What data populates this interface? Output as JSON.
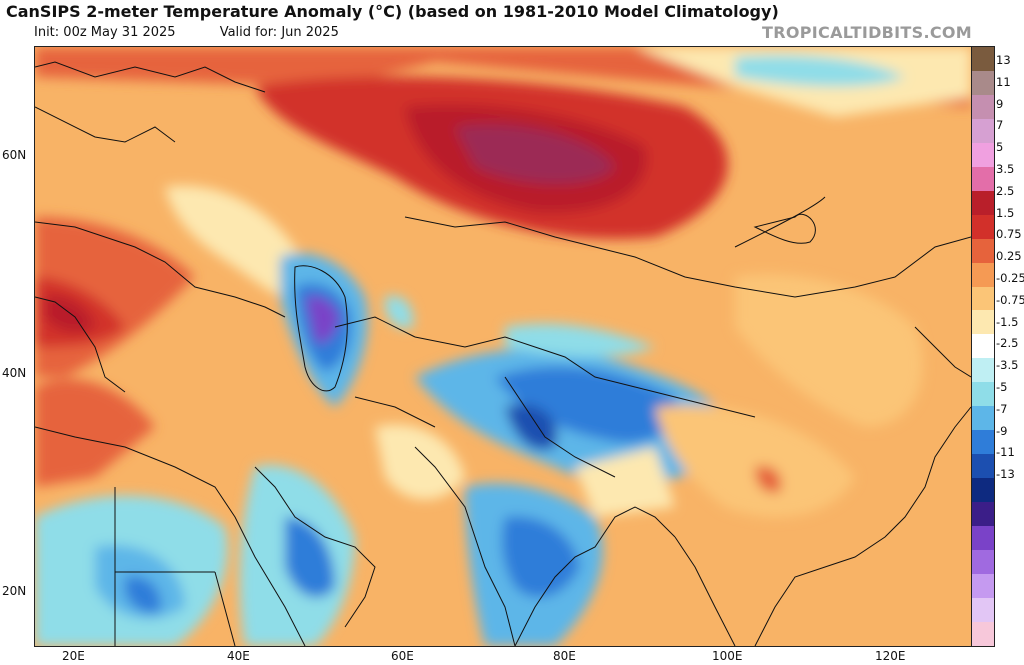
{
  "header": {
    "title": "CanSIPS 2-meter Temperature Anomaly (°C) (based on 1981-2010 Model Climatology)",
    "init": "Init: 00z May 31 2025",
    "valid": "Valid for: Jun 2025",
    "brand": "TROPICALTIDBITS.COM"
  },
  "map": {
    "lat_labels": [
      "60N",
      "40N",
      "20N"
    ],
    "lon_labels": [
      "20E",
      "40E",
      "60E",
      "80E",
      "100E",
      "120E"
    ]
  },
  "colorbar": {
    "labels": [
      "13",
      "11",
      "9",
      "7",
      "5",
      "3.5",
      "2.5",
      "1.5",
      "0.75",
      "0.25",
      "-0.25",
      "-0.75",
      "-1.5",
      "-2.5",
      "-3.5",
      "-5",
      "-7",
      "-9",
      "-11",
      "-13"
    ],
    "colors": [
      "#7a5b3e",
      "#a98a8a",
      "#c58fb0",
      "#d6a0d2",
      "#f0a0e0",
      "#e36ea9",
      "#b91f2a",
      "#d2302a",
      "#e6633c",
      "#f59a54",
      "#fbc577",
      "#fde8b0",
      "#ffffff",
      "#bfeff3",
      "#8fdde8",
      "#5db6e8",
      "#2f7dd9",
      "#1c4fb0",
      "#0e2a80",
      "#3b1e88",
      "#7a42c8",
      "#a06ae0",
      "#c59af0",
      "#e2c6f5",
      "#f7c8da"
    ]
  }
}
